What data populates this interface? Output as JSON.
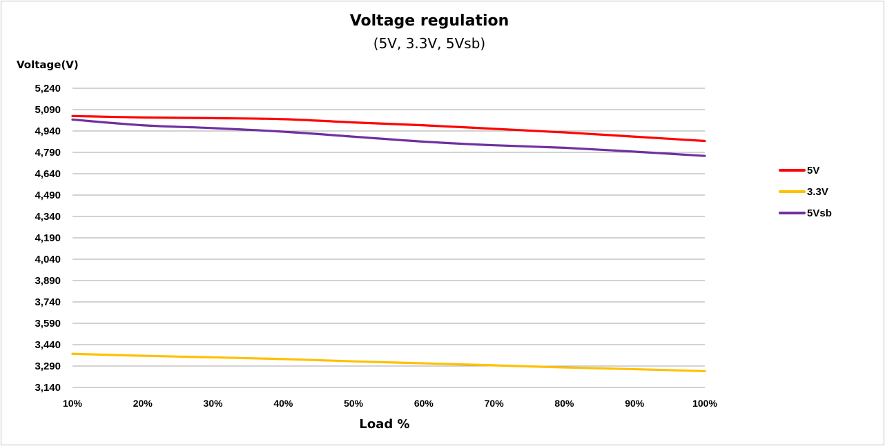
{
  "chart_data": {
    "type": "line",
    "title": "Voltage regulation",
    "subtitle": "(5V, 3.3V, 5Vsb)",
    "xlabel": "Load %",
    "ylabel": "Voltage(V)",
    "categories": [
      "10%",
      "20%",
      "30%",
      "40%",
      "50%",
      "60%",
      "70%",
      "80%",
      "90%",
      "100%"
    ],
    "yticks": [
      "5,240",
      "5,090",
      "4,940",
      "4,790",
      "4,640",
      "4,490",
      "4,340",
      "4,190",
      "4,040",
      "3,890",
      "3,740",
      "3,590",
      "3,440",
      "3,290",
      "3,140"
    ],
    "ylim": [
      3.14,
      5.24
    ],
    "grid": true,
    "legend_position": "right",
    "series": [
      {
        "name": "5V",
        "color": "#ff0000",
        "values": [
          5.045,
          5.035,
          5.03,
          5.023,
          5.0,
          4.98,
          4.955,
          4.93,
          4.9,
          4.87
        ]
      },
      {
        "name": "3.3V",
        "color": "#ffc000",
        "values": [
          3.376,
          3.362,
          3.351,
          3.339,
          3.323,
          3.309,
          3.295,
          3.28,
          3.268,
          3.254
        ]
      },
      {
        "name": "5Vsb",
        "color": "#7030a0",
        "values": [
          5.02,
          4.98,
          4.96,
          4.935,
          4.9,
          4.865,
          4.84,
          4.822,
          4.795,
          4.765
        ]
      }
    ]
  }
}
